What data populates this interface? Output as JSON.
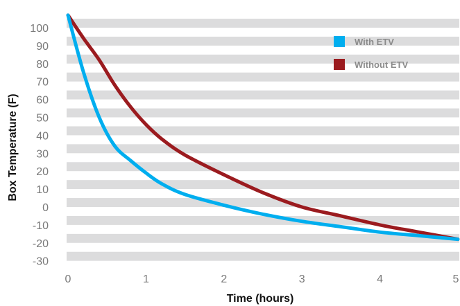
{
  "chart_data": {
    "type": "line",
    "xlabel": "Time (hours)",
    "ylabel": "Box Temperature (F)",
    "xlim": [
      0,
      5
    ],
    "ylim": [
      -30,
      100
    ],
    "xticks": [
      "0",
      "1",
      "2",
      "3",
      "4",
      "5"
    ],
    "yticks": [
      "100",
      "90",
      "80",
      "70",
      "60",
      "50",
      "40",
      "30",
      "20",
      "10",
      "0",
      "-10",
      "-20",
      "-30"
    ],
    "grid": "horizontal bands",
    "legend_position": "top-right",
    "series": [
      {
        "name": "With ETV",
        "color": "#00aeef",
        "points": [
          [
            0,
            107
          ],
          [
            0.2,
            75
          ],
          [
            0.4,
            50
          ],
          [
            0.6,
            34
          ],
          [
            0.8,
            26
          ],
          [
            1.0,
            19
          ],
          [
            1.2,
            13
          ],
          [
            1.5,
            7
          ],
          [
            2.0,
            1
          ],
          [
            2.5,
            -4
          ],
          [
            3.0,
            -8
          ],
          [
            3.5,
            -11
          ],
          [
            4.0,
            -14
          ],
          [
            4.5,
            -16
          ],
          [
            5.0,
            -18
          ]
        ]
      },
      {
        "name": "Without ETV",
        "color": "#9b1b1f",
        "points": [
          [
            0,
            107
          ],
          [
            0.2,
            94
          ],
          [
            0.4,
            82
          ],
          [
            0.6,
            68
          ],
          [
            0.8,
            56
          ],
          [
            1.0,
            46
          ],
          [
            1.2,
            38
          ],
          [
            1.5,
            29
          ],
          [
            2.0,
            18
          ],
          [
            2.5,
            8
          ],
          [
            3.0,
            0
          ],
          [
            3.5,
            -5
          ],
          [
            4.0,
            -10
          ],
          [
            4.5,
            -14
          ],
          [
            5.0,
            -18
          ]
        ]
      }
    ]
  }
}
